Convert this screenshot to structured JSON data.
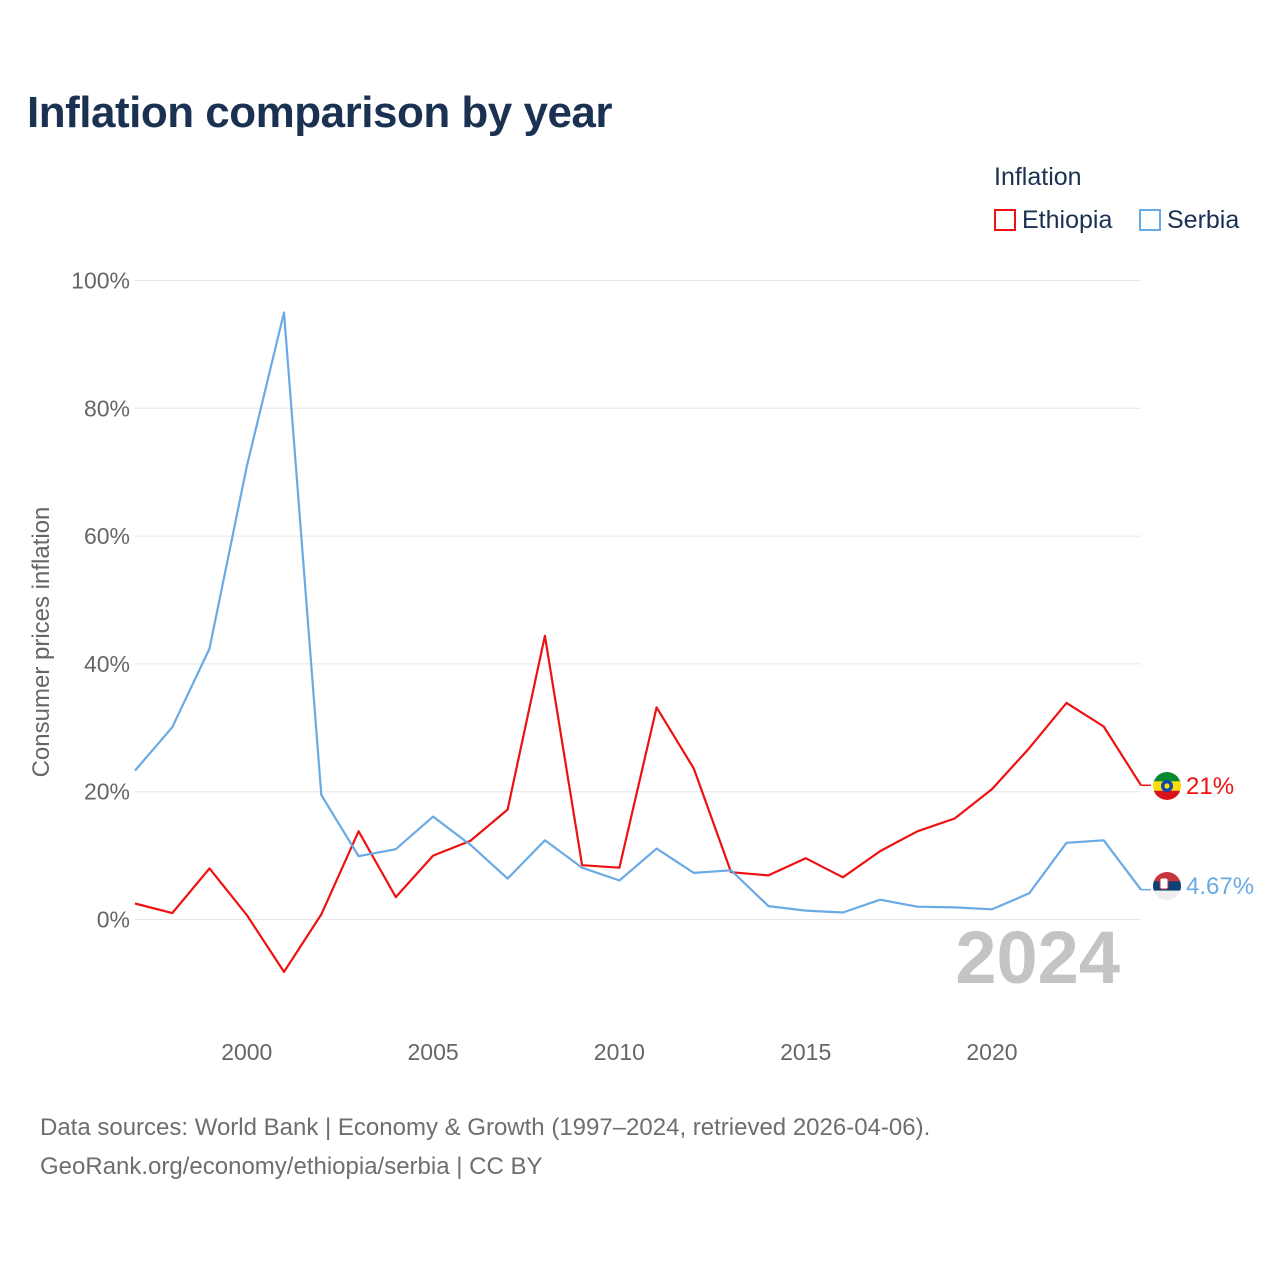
{
  "chart_data": {
    "type": "line",
    "title": "Inflation comparison by year",
    "legend_title": "Inflation",
    "ylabel": "Consumer prices inflation",
    "xlabel": "",
    "year_marker": "2024",
    "x": [
      1997,
      1998,
      1999,
      2000,
      2001,
      2002,
      2003,
      2004,
      2005,
      2006,
      2007,
      2008,
      2009,
      2010,
      2011,
      2012,
      2013,
      2014,
      2015,
      2016,
      2017,
      2018,
      2019,
      2020,
      2021,
      2022,
      2023,
      2024
    ],
    "xticks": [
      2000,
      2005,
      2010,
      2015,
      2020
    ],
    "xlim": [
      1997,
      2024
    ],
    "yticks": [
      0,
      20,
      40,
      60,
      80,
      100
    ],
    "ytick_labels": [
      "0%",
      "20%",
      "40%",
      "60%",
      "80%",
      "100%"
    ],
    "ylim": [
      -15,
      100
    ],
    "series": [
      {
        "name": "Ethiopia",
        "color": "#ee1111",
        "end_label": "21%",
        "flag": "ethiopia-flag",
        "values": [
          2.5,
          1.0,
          8.0,
          0.7,
          -8.2,
          0.8,
          13.8,
          3.5,
          10.0,
          12.3,
          17.2,
          44.4,
          8.5,
          8.1,
          33.2,
          23.6,
          7.4,
          6.9,
          9.6,
          6.6,
          10.7,
          13.8,
          15.8,
          20.4,
          26.8,
          33.9,
          30.2,
          21.0
        ]
      },
      {
        "name": "Serbia",
        "color": "#6aaae4",
        "end_label": "4.67%",
        "flag": "serbia-flag",
        "values": [
          23.3,
          30.1,
          42.4,
          70.9,
          95.0,
          19.5,
          9.9,
          11.0,
          16.1,
          11.7,
          6.4,
          12.4,
          8.1,
          6.1,
          11.1,
          7.3,
          7.7,
          2.1,
          1.4,
          1.1,
          3.1,
          2.0,
          1.9,
          1.6,
          4.1,
          12.0,
          12.4,
          4.67
        ]
      }
    ]
  },
  "source": {
    "line1": "Data sources: World Bank | Economy & Growth (1997–2024, retrieved 2026-04-06).",
    "line2": "GeoRank.org/economy/ethiopia/serbia | CC BY"
  }
}
